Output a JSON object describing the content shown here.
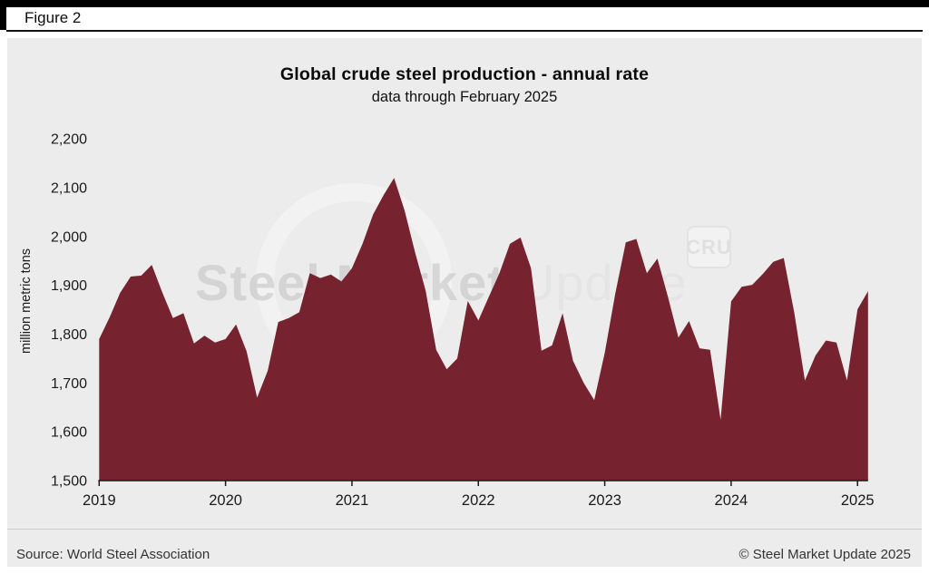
{
  "figure_label": "Figure 2",
  "title": "Global crude steel production - annual rate",
  "subtitle": "data through February 2025",
  "watermark": {
    "part1": "Steel Market",
    "part2": "Update",
    "cru_label": "CRU"
  },
  "footer": {
    "source": "Source: World Steel Association",
    "copyright": "© Steel Market Update 2025"
  },
  "colors": {
    "area": "#76232F",
    "panel": "#ECECEC",
    "axis": "#1A1A1A"
  },
  "chart_data": {
    "type": "area",
    "title": "Global crude steel production - annual rate",
    "subtitle": "data through February 2025",
    "xlabel": "",
    "ylabel": "million metric tons",
    "ylim": [
      1500,
      2200
    ],
    "grid": false,
    "legend": null,
    "area_color": "#76232F",
    "y_ticks": [
      {
        "label": "2,200",
        "value": 2200
      },
      {
        "label": "2,100",
        "value": 2100
      },
      {
        "label": "2,000",
        "value": 2000
      },
      {
        "label": "1,900",
        "value": 1900
      },
      {
        "label": "1,800",
        "value": 1800
      },
      {
        "label": "1,700",
        "value": 1700
      },
      {
        "label": "1,600",
        "value": 1600
      },
      {
        "label": "1,500",
        "value": 1500
      }
    ],
    "x_ticks": [
      {
        "label": "2019",
        "month_index": 0
      },
      {
        "label": "2020",
        "month_index": 12
      },
      {
        "label": "2021",
        "month_index": 24
      },
      {
        "label": "2022",
        "month_index": 36
      },
      {
        "label": "2023",
        "month_index": 48
      },
      {
        "label": "2024",
        "month_index": 60
      },
      {
        "label": "2025",
        "month_index": 72
      }
    ],
    "x": [
      "2019-01",
      "2019-02",
      "2019-03",
      "2019-04",
      "2019-05",
      "2019-06",
      "2019-07",
      "2019-08",
      "2019-09",
      "2019-10",
      "2019-11",
      "2019-12",
      "2020-01",
      "2020-02",
      "2020-03",
      "2020-04",
      "2020-05",
      "2020-06",
      "2020-07",
      "2020-08",
      "2020-09",
      "2020-10",
      "2020-11",
      "2020-12",
      "2021-01",
      "2021-02",
      "2021-03",
      "2021-04",
      "2021-05",
      "2021-06",
      "2021-07",
      "2021-08",
      "2021-09",
      "2021-10",
      "2021-11",
      "2021-12",
      "2022-01",
      "2022-02",
      "2022-03",
      "2022-04",
      "2022-05",
      "2022-06",
      "2022-07",
      "2022-08",
      "2022-09",
      "2022-10",
      "2022-11",
      "2022-12",
      "2023-01",
      "2023-02",
      "2023-03",
      "2023-04",
      "2023-05",
      "2023-06",
      "2023-07",
      "2023-08",
      "2023-09",
      "2023-10",
      "2023-11",
      "2023-12",
      "2024-01",
      "2024-02",
      "2024-03",
      "2024-04",
      "2024-05",
      "2024-06",
      "2024-07",
      "2024-08",
      "2024-09",
      "2024-10",
      "2024-11",
      "2024-12",
      "2025-01",
      "2025-02"
    ],
    "values": [
      1790,
      1835,
      1885,
      1918,
      1920,
      1942,
      1885,
      1833,
      1843,
      1781,
      1797,
      1783,
      1790,
      1820,
      1765,
      1670,
      1725,
      1825,
      1833,
      1845,
      1925,
      1915,
      1922,
      1908,
      1935,
      1985,
      2045,
      2085,
      2120,
      2053,
      1967,
      1889,
      1768,
      1728,
      1750,
      1868,
      1828,
      1877,
      1925,
      1985,
      1998,
      1935,
      1766,
      1777,
      1843,
      1745,
      1700,
      1665,
      1762,
      1883,
      1988,
      1995,
      1925,
      1955,
      1877,
      1793,
      1827,
      1771,
      1768,
      1625,
      1867,
      1897,
      1901,
      1923,
      1948,
      1956,
      1843,
      1705,
      1756,
      1787,
      1783,
      1705,
      1851,
      1888
    ]
  }
}
